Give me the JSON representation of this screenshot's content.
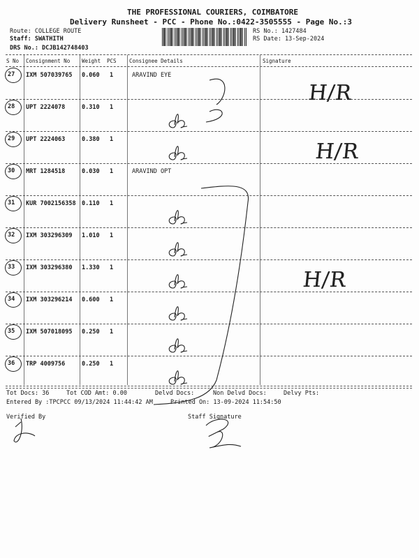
{
  "header": {
    "company": "THE PROFESSIONAL COURIERS, COIMBATORE",
    "subtitle": "Delivery Runsheet - PCC - Phone No.:0422-3505555 - Page No.:3",
    "route": "Route: COLLEGE ROUTE",
    "staff": "Staff: SWATHITH",
    "drs": "DRS No.: DCJB142748403",
    "rs_no": "RS No.: 1427484",
    "rs_date": "RS Date: 13-Sep-2024"
  },
  "columns": [
    "S No",
    "Consignment No",
    "Weight",
    "PCS",
    "Consignee Details",
    "Signature"
  ],
  "rows": [
    {
      "sno": "27",
      "consignment": "IXM 507039765",
      "weight": "0.060",
      "pcs": "1",
      "consignee": "ARAVIND EYE"
    },
    {
      "sno": "28",
      "consignment": "UPT 2224078",
      "weight": "0.310",
      "pcs": "1",
      "consignee": ""
    },
    {
      "sno": "29",
      "consignment": "UPT 2224063",
      "weight": "0.380",
      "pcs": "1",
      "consignee": ""
    },
    {
      "sno": "30",
      "consignment": "MRT 1284518",
      "weight": "0.030",
      "pcs": "1",
      "consignee": "ARAVIND OPT"
    },
    {
      "sno": "31",
      "consignment": "KUR 7002156358",
      "weight": "0.110",
      "pcs": "1",
      "consignee": ""
    },
    {
      "sno": "32",
      "consignment": "IXM 303296309",
      "weight": "1.010",
      "pcs": "1",
      "consignee": ""
    },
    {
      "sno": "33",
      "consignment": "IXM 303296380",
      "weight": "1.330",
      "pcs": "1",
      "consignee": ""
    },
    {
      "sno": "34",
      "consignment": "IXM 303296214",
      "weight": "0.600",
      "pcs": "1",
      "consignee": ""
    },
    {
      "sno": "35",
      "consignment": "IXM 507018095",
      "weight": "0.250",
      "pcs": "1",
      "consignee": ""
    },
    {
      "sno": "36",
      "consignment": "TRP 4009756",
      "weight": "0.250",
      "pcs": "1",
      "consignee": ""
    }
  ],
  "footer": {
    "tot_docs": "Tot Docs:  36",
    "tot_cod": "Tot COD Amt:     0.00",
    "delvd": "Delvd Docs:",
    "non_delvd": "Non Delvd Docs:",
    "delvy_pts": "Delvy Pts:",
    "entered": "Entered By :TPCPCC 09/13/2024 11:44:42 AM",
    "printed": "Printed On: 13-09-2024 11:54:50",
    "verified": "Verified By",
    "staff_sig": "Staff Signature"
  },
  "handwritten": {
    "hr_mark": "H/R"
  }
}
